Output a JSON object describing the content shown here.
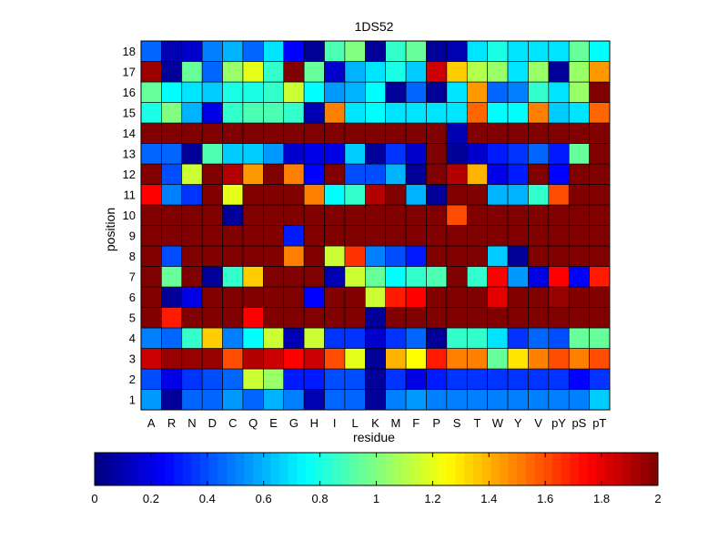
{
  "chart_data": {
    "type": "heatmap",
    "title": "1DS52",
    "xlabel": "residue",
    "ylabel": "position",
    "x_categories": [
      "A",
      "R",
      "N",
      "D",
      "C",
      "Q",
      "E",
      "G",
      "H",
      "I",
      "L",
      "K",
      "M",
      "F",
      "P",
      "S",
      "T",
      "W",
      "Y",
      "V",
      "pY",
      "pS",
      "pT"
    ],
    "y_categories": [
      "1",
      "2",
      "3",
      "4",
      "5",
      "6",
      "7",
      "8",
      "9",
      "10",
      "11",
      "12",
      "13",
      "14",
      "15",
      "16",
      "17",
      "18"
    ],
    "colormap": "jet",
    "clim": [
      0,
      2
    ],
    "colorbar": {
      "orientation": "horizontal",
      "ticks": [
        0,
        0.2,
        0.4,
        0.6,
        0.8,
        1,
        1.2,
        1.4,
        1.6,
        1.8,
        2
      ],
      "tick_labels": [
        "0",
        "0.2",
        "0.4",
        "0.6",
        "0.8",
        "1",
        "1.2",
        "1.4",
        "1.6",
        "1.8",
        "2"
      ]
    },
    "values": [
      [
        0.55,
        0.05,
        0.45,
        0.45,
        0.55,
        0.45,
        0.6,
        0.5,
        0.1,
        0.45,
        0.45,
        0.05,
        0.5,
        0.55,
        0.5,
        0.5,
        0.5,
        0.5,
        0.5,
        0.5,
        0.5,
        0.5,
        0.65
      ],
      [
        0.4,
        0.2,
        0.35,
        0.4,
        0.45,
        1.15,
        1.05,
        0.3,
        0.3,
        0.4,
        0.4,
        0.05,
        0.35,
        0.2,
        0.3,
        0.35,
        0.35,
        0.35,
        0.35,
        0.35,
        0.35,
        0.25,
        0.35
      ],
      [
        1.85,
        1.95,
        1.95,
        1.95,
        1.6,
        1.9,
        1.85,
        1.75,
        1.85,
        1.6,
        1.2,
        0.05,
        1.4,
        1.25,
        1.7,
        1.5,
        1.5,
        0.95,
        1.3,
        1.5,
        1.6,
        1.5,
        1.6
      ],
      [
        0.5,
        0.45,
        0.85,
        1.35,
        0.5,
        0.75,
        1.15,
        0.1,
        1.15,
        0.35,
        0.35,
        0.15,
        0.35,
        0.45,
        0.05,
        0.85,
        0.85,
        0.7,
        0.35,
        0.45,
        0.4,
        0.95,
        0.95
      ],
      [
        2,
        1.7,
        2,
        2,
        2,
        1.75,
        2,
        2,
        2,
        2,
        2,
        0.05,
        2,
        2,
        2,
        2,
        2,
        2,
        2,
        2,
        2,
        2,
        2
      ],
      [
        2,
        0.05,
        0.2,
        2,
        2,
        2,
        2,
        2,
        0.25,
        2,
        2,
        1.15,
        1.7,
        1.75,
        2,
        2,
        2,
        1.8,
        2,
        2,
        1.95,
        2,
        2
      ],
      [
        2,
        0.95,
        2,
        0.05,
        0.85,
        1.35,
        2,
        2,
        2,
        0.1,
        1.15,
        0.95,
        0.75,
        0.85,
        0.9,
        2,
        0.85,
        1.75,
        0.55,
        0.2,
        1.75,
        0.25,
        1.7
      ],
      [
        2,
        0.4,
        2,
        2,
        2,
        2,
        2,
        1.5,
        2,
        1.15,
        1.65,
        0.5,
        0.4,
        0.3,
        2,
        2,
        2,
        0.65,
        0.05,
        2,
        2,
        2,
        2
      ],
      [
        2,
        2,
        2,
        2,
        2,
        2,
        2,
        0.3,
        2,
        2,
        2,
        2,
        2,
        2,
        2,
        2,
        2,
        2,
        2,
        2,
        2,
        2,
        2
      ],
      [
        2,
        2,
        2,
        2,
        0.05,
        2,
        2,
        2,
        2,
        2,
        2,
        2,
        2,
        2,
        2,
        1.6,
        2,
        2,
        2,
        2,
        2,
        2,
        2
      ],
      [
        1.75,
        0.5,
        0.35,
        2,
        1.2,
        2,
        2,
        2,
        1.5,
        0.75,
        0.85,
        1.9,
        2,
        0.6,
        0.05,
        2,
        2,
        0.6,
        0.6,
        0.85,
        1.6,
        2,
        2
      ],
      [
        2,
        0.4,
        1.15,
        2,
        1.9,
        1.45,
        2,
        1.5,
        0.25,
        2,
        0.4,
        0.4,
        0.6,
        0.05,
        2,
        1.9,
        1.4,
        0.2,
        0.3,
        2,
        0.25,
        2,
        2
      ],
      [
        0.45,
        0.45,
        0.05,
        0.9,
        0.65,
        0.65,
        0.55,
        0.15,
        0.2,
        0.2,
        0.65,
        0.05,
        0.35,
        0.15,
        2,
        0.05,
        0.15,
        0.3,
        0.35,
        0.45,
        0.3,
        0.95,
        2
      ],
      [
        2,
        2,
        2,
        2,
        2,
        2,
        2,
        2,
        2,
        2,
        2,
        2,
        2,
        2,
        2,
        0.1,
        2,
        2,
        2,
        2,
        2,
        2,
        2
      ],
      [
        0.8,
        1.0,
        0.6,
        0.2,
        0.85,
        0.9,
        0.9,
        0.85,
        0.1,
        1.5,
        0.7,
        0.75,
        0.7,
        0.7,
        0.7,
        0.7,
        1.55,
        0.75,
        0.75,
        1.5,
        0.65,
        0.7,
        1.55
      ],
      [
        0.95,
        0.75,
        0.7,
        0.65,
        0.8,
        0.8,
        0.85,
        1.15,
        0.75,
        0.55,
        0.6,
        0.75,
        0.05,
        0.45,
        0.05,
        0.7,
        1.45,
        0.45,
        0.5,
        0.85,
        0.7,
        1.05,
        2
      ],
      [
        1.95,
        0.05,
        0.95,
        0.45,
        1.05,
        1.2,
        0.85,
        2,
        0.95,
        0.15,
        0.6,
        0.7,
        0.8,
        0.65,
        1.85,
        1.35,
        1.1,
        1.05,
        0.7,
        1.05,
        0.05,
        1.05,
        1.45
      ],
      [
        0.45,
        0.1,
        0.15,
        0.5,
        0.6,
        0.45,
        0.7,
        0.25,
        0.05,
        0.9,
        1.0,
        0.05,
        0.85,
        0.95,
        0.05,
        0.1,
        0.7,
        0.8,
        0.7,
        0.7,
        0.7,
        0.95,
        0.75
      ]
    ]
  }
}
